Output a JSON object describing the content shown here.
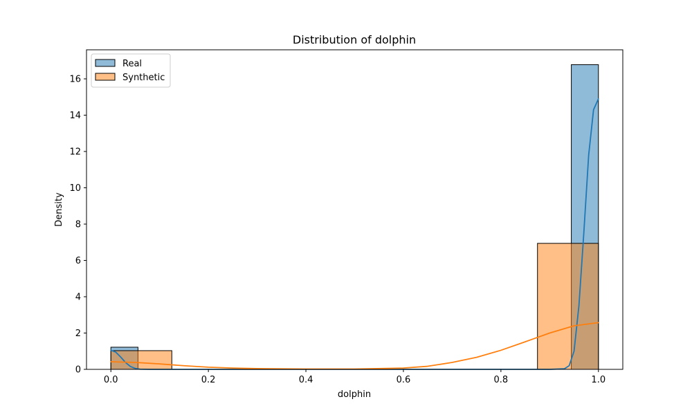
{
  "chart_data": {
    "type": "bar",
    "title": "Distribution of dolphin",
    "xlabel": "dolphin",
    "ylabel": "Density",
    "xlim": [
      -0.05,
      1.05
    ],
    "ylim": [
      0,
      17.6
    ],
    "xticks": [
      0.0,
      0.2,
      0.4,
      0.6,
      0.8,
      1.0
    ],
    "xtick_labels": [
      "0.0",
      "0.2",
      "0.4",
      "0.6",
      "0.8",
      "1.0"
    ],
    "yticks": [
      0,
      2,
      4,
      6,
      8,
      10,
      12,
      14,
      16
    ],
    "ytick_labels": [
      "0",
      "2",
      "4",
      "6",
      "8",
      "10",
      "12",
      "14",
      "16"
    ],
    "grid": false,
    "legend_position": "top-left",
    "series": [
      {
        "name": "Real",
        "color": "#1f77b4",
        "bins": [
          {
            "x0": 0.0,
            "x1": 0.0556,
            "density": 1.22
          },
          {
            "x0": 0.9444,
            "x1": 1.0,
            "density": 16.78
          }
        ],
        "kde": [
          [
            0.0,
            1.05
          ],
          [
            0.01,
            0.95
          ],
          [
            0.02,
            0.68
          ],
          [
            0.03,
            0.38
          ],
          [
            0.04,
            0.16
          ],
          [
            0.05,
            0.05
          ],
          [
            0.06,
            0.01
          ],
          [
            0.08,
            0.0
          ],
          [
            0.9,
            0.0
          ],
          [
            0.93,
            0.03
          ],
          [
            0.94,
            0.2
          ],
          [
            0.95,
            1.0
          ],
          [
            0.96,
            3.5
          ],
          [
            0.97,
            7.5
          ],
          [
            0.98,
            11.8
          ],
          [
            0.99,
            14.3
          ],
          [
            1.0,
            14.9
          ]
        ]
      },
      {
        "name": "Synthetic",
        "color": "#ff7f0e",
        "bins": [
          {
            "x0": 0.0,
            "x1": 0.125,
            "density": 1.03
          },
          {
            "x0": 0.875,
            "x1": 1.0,
            "density": 6.94
          }
        ],
        "kde": [
          [
            0.0,
            0.42
          ],
          [
            0.05,
            0.38
          ],
          [
            0.1,
            0.3
          ],
          [
            0.15,
            0.2
          ],
          [
            0.2,
            0.12
          ],
          [
            0.25,
            0.07
          ],
          [
            0.3,
            0.04
          ],
          [
            0.4,
            0.02
          ],
          [
            0.5,
            0.02
          ],
          [
            0.6,
            0.07
          ],
          [
            0.65,
            0.17
          ],
          [
            0.7,
            0.38
          ],
          [
            0.75,
            0.66
          ],
          [
            0.8,
            1.05
          ],
          [
            0.85,
            1.52
          ],
          [
            0.9,
            2.0
          ],
          [
            0.95,
            2.4
          ],
          [
            1.0,
            2.57
          ]
        ]
      }
    ]
  }
}
